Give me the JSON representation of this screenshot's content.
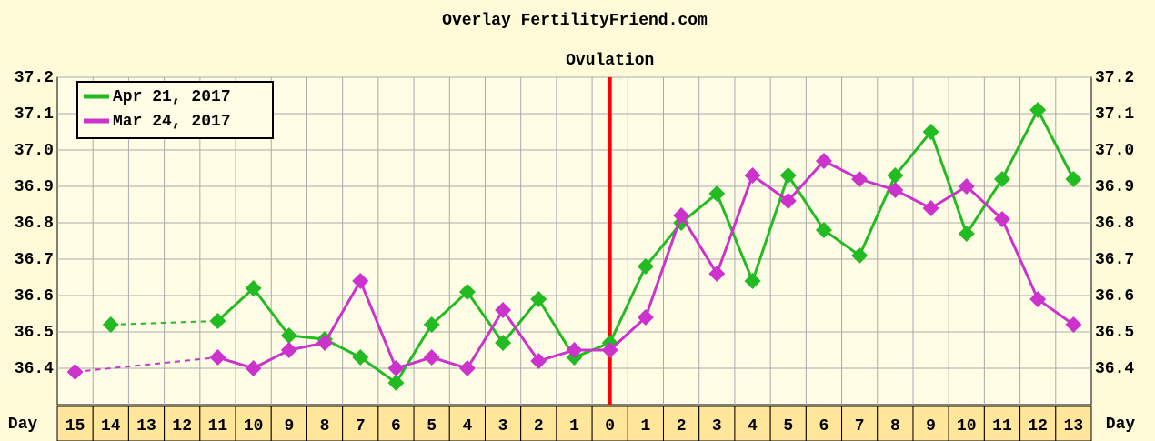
{
  "chart_data": {
    "type": "line",
    "title": "Overlay FertilityFriend.com",
    "ovulation": {
      "label": "Ovulation",
      "category": "0",
      "color": "#ff0000"
    },
    "x_label": "Day",
    "categories": [
      "15",
      "14",
      "13",
      "12",
      "11",
      "10",
      "9",
      "8",
      "7",
      "6",
      "5",
      "4",
      "3",
      "2",
      "1",
      "0",
      "1",
      "2",
      "3",
      "4",
      "5",
      "6",
      "7",
      "8",
      "9",
      "10",
      "11",
      "12",
      "13"
    ],
    "series": [
      {
        "name": "Apr 21, 2017",
        "color": "#22bb22",
        "values": [
          null,
          36.52,
          null,
          null,
          36.53,
          36.62,
          36.49,
          36.48,
          36.43,
          36.36,
          36.52,
          36.61,
          36.47,
          36.59,
          36.43,
          36.47,
          36.68,
          36.8,
          36.88,
          36.64,
          36.93,
          36.78,
          36.71,
          36.93,
          37.05,
          36.77,
          36.92,
          37.11,
          36.92
        ]
      },
      {
        "name": "Mar 24, 2017",
        "color": "#cc33cc",
        "values": [
          36.39,
          null,
          null,
          null,
          36.43,
          36.4,
          36.45,
          36.47,
          36.64,
          36.4,
          36.43,
          36.4,
          36.56,
          36.42,
          36.45,
          36.45,
          36.54,
          36.82,
          36.66,
          36.93,
          36.86,
          36.97,
          36.92,
          36.89,
          36.84,
          36.9,
          36.81,
          36.59,
          36.52
        ]
      }
    ],
    "ylim": [
      36.3,
      37.2
    ],
    "yticks": [
      36.4,
      36.5,
      36.6,
      36.7,
      36.8,
      36.9,
      {
        "value": 37,
        "label": "37.0"
      },
      37.1,
      37.2
    ],
    "grid": true,
    "legend": "upper left"
  }
}
